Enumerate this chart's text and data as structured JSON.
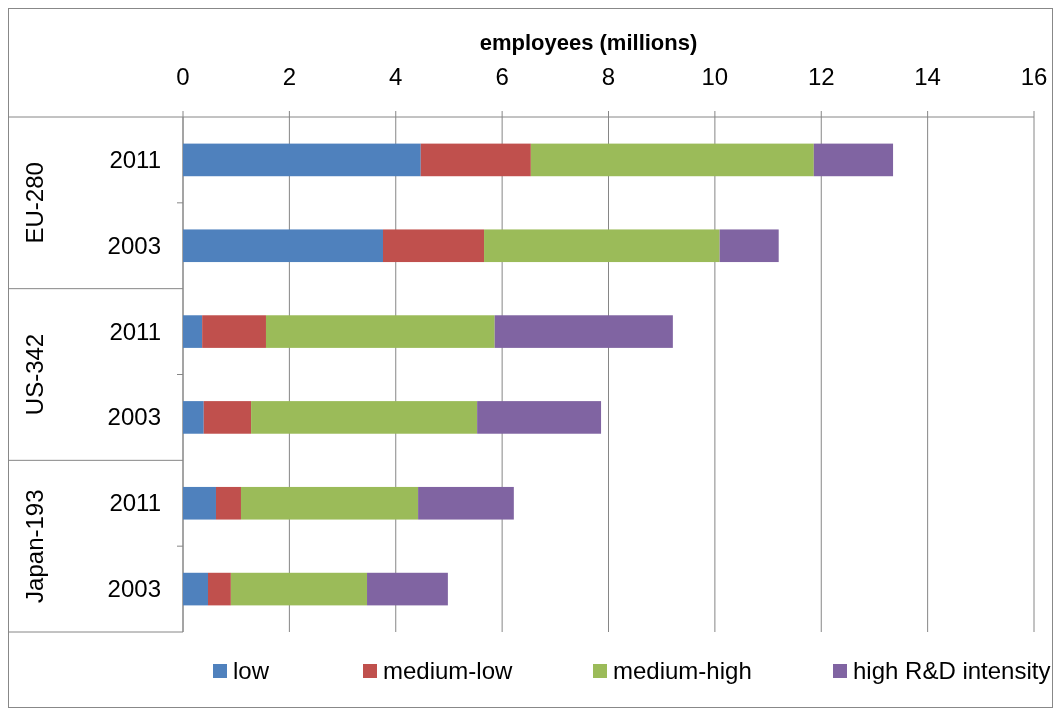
{
  "chart_data": {
    "type": "bar",
    "orientation": "horizontal",
    "stacked": true,
    "xlabel": "employees (millions)",
    "categories": [
      "2011",
      "2003",
      "2011",
      "2003",
      "2011",
      "2003"
    ],
    "annotations": [
      "EU-280",
      "US-342",
      "Japan-193"
    ],
    "series": [
      {
        "name": "low",
        "color": "#4f81bd",
        "values": [
          4.47,
          3.76,
          0.36,
          0.39,
          0.62,
          0.47
        ]
      },
      {
        "name": "medium-low",
        "color": "#c0504d",
        "values": [
          2.07,
          1.9,
          1.2,
          0.89,
          0.47,
          0.43
        ]
      },
      {
        "name": "medium-high",
        "color": "#9bbb59",
        "values": [
          5.32,
          4.43,
          4.3,
          4.25,
          3.33,
          2.56
        ]
      },
      {
        "name": "high R&D intensity",
        "color": "#8064a2",
        "values": [
          1.49,
          1.11,
          3.35,
          2.33,
          1.8,
          1.52
        ]
      }
    ],
    "xlim": [
      0,
      16
    ],
    "xticks": [
      0,
      2,
      4,
      6,
      8,
      10,
      12,
      14,
      16
    ],
    "grid": "x",
    "legend": "bottom"
  }
}
